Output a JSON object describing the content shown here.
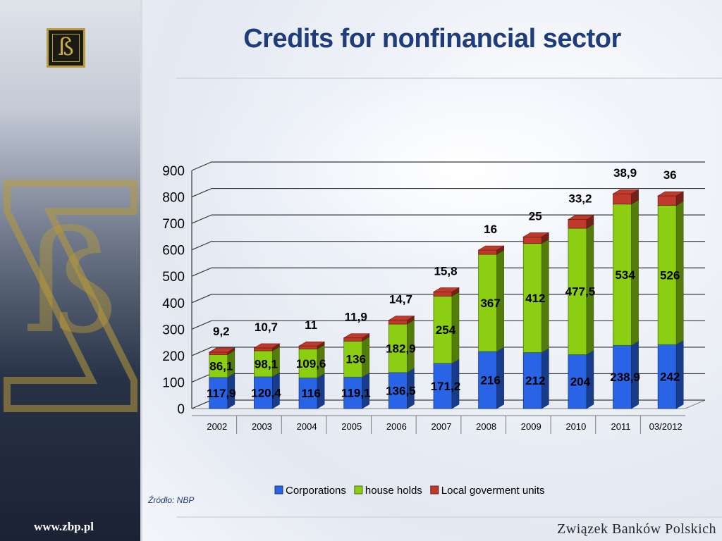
{
  "page": {
    "title": "Credits for nonfinancial sector",
    "source_note": "Źródło: NBP",
    "site_url": "www.zbp.pl",
    "organization": "Związek Banków Polskich",
    "logo_glyph": "ß"
  },
  "colors": {
    "title": "#1f3d7a",
    "corporations": "#2a64e6",
    "households": "#8ccf12",
    "local_government": "#c0392b"
  },
  "chart_data": {
    "type": "bar",
    "stacked": true,
    "three_d": true,
    "title": "",
    "xlabel": "",
    "ylabel": "",
    "ylim": [
      0,
      900
    ],
    "yticks": [
      0,
      100,
      200,
      300,
      400,
      500,
      600,
      700,
      800,
      900
    ],
    "grid": true,
    "legend_position": "bottom",
    "categories": [
      "2002",
      "2003",
      "2004",
      "2005",
      "2006",
      "2007",
      "2008",
      "2009",
      "2010",
      "2011",
      "03/2012"
    ],
    "series": [
      {
        "name": "Corporations",
        "values": [
          117.9,
          120.4,
          116,
          119.1,
          136.5,
          171.2,
          216,
          212,
          204,
          238.9,
          242
        ],
        "labels": [
          "117,9",
          "120,4",
          "116",
          "119,1",
          "136,5",
          "171,2",
          "216",
          "212",
          "204",
          "238,9",
          "242"
        ]
      },
      {
        "name": "house holds",
        "values": [
          86.1,
          98.1,
          109.6,
          136,
          182.9,
          254,
          367,
          412,
          477.5,
          534,
          526
        ],
        "labels": [
          "86,1",
          "98,1",
          "109,6",
          "136",
          "182,9",
          "254",
          "367",
          "412",
          "477,5",
          "534",
          "526"
        ]
      },
      {
        "name": "Local goverment units",
        "values": [
          9.2,
          10.7,
          11,
          11.9,
          14.7,
          15.8,
          16,
          25,
          33.2,
          38.9,
          36
        ],
        "labels": [
          "9,2",
          "10,7",
          "11",
          "11,9",
          "14,7",
          "15,8",
          "16",
          "25",
          "33,2",
          "38,9",
          "36"
        ]
      }
    ]
  }
}
